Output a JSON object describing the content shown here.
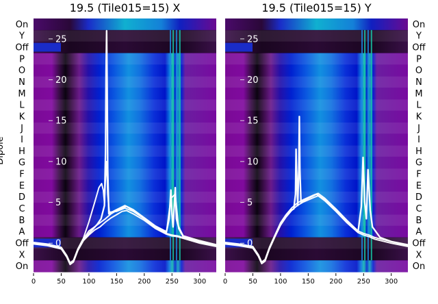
{
  "chart_data": [
    {
      "type": "heatmap",
      "title": "19.5 (Tile015=15) X",
      "ylabel": "Dipole",
      "dipole_labels": [
        "On",
        "Y",
        "Off",
        "P",
        "O",
        "N",
        "M",
        "L",
        "K",
        "J",
        "I",
        "H",
        "G",
        "F",
        "E",
        "D",
        "C",
        "B",
        "A",
        "Off",
        "X",
        "On"
      ],
      "x_ticks": [
        0,
        50,
        100,
        150,
        200,
        250,
        300
      ],
      "x_range": [
        0,
        330
      ],
      "overlay_y_ticks": [
        0,
        5,
        10,
        15,
        20,
        25
      ],
      "overlay_y_range": [
        -3.5,
        27.5
      ],
      "band_centers_x": [
        50,
        85,
        165,
        250,
        262
      ],
      "spike_x": 132,
      "series": [
        {
          "values": [
            [
              0,
              0.0
            ],
            [
              25,
              -0.2
            ],
            [
              50,
              -0.6
            ],
            [
              60,
              -1.6
            ],
            [
              66,
              -2.5
            ],
            [
              72,
              -2.2
            ],
            [
              80,
              -0.8
            ],
            [
              90,
              0.4
            ],
            [
              100,
              1.2
            ],
            [
              115,
              2.3
            ],
            [
              122,
              3.0
            ],
            [
              128,
              4.6
            ],
            [
              130,
              11.0
            ],
            [
              131,
              21.0
            ],
            [
              132,
              26.0
            ],
            [
              133,
              19.0
            ],
            [
              134,
              9.0
            ],
            [
              136,
              3.6
            ],
            [
              150,
              4.1
            ],
            [
              165,
              4.6
            ],
            [
              180,
              4.1
            ],
            [
              200,
              3.1
            ],
            [
              220,
              2.1
            ],
            [
              240,
              1.4
            ],
            [
              245,
              3.0
            ],
            [
              248,
              6.5
            ],
            [
              250,
              3.5
            ],
            [
              252,
              2.0
            ],
            [
              256,
              6.8
            ],
            [
              258,
              3.0
            ],
            [
              262,
              2.0
            ],
            [
              270,
              0.9
            ],
            [
              300,
              0.3
            ],
            [
              330,
              -0.2
            ]
          ]
        },
        {
          "values": [
            [
              0,
              0.1
            ],
            [
              25,
              -0.1
            ],
            [
              50,
              -0.5
            ],
            [
              60,
              -1.5
            ],
            [
              66,
              -2.4
            ],
            [
              72,
              -2.1
            ],
            [
              80,
              -0.7
            ],
            [
              90,
              0.6
            ],
            [
              100,
              2.6
            ],
            [
              110,
              4.9
            ],
            [
              118,
              6.8
            ],
            [
              123,
              7.3
            ],
            [
              126,
              6.5
            ],
            [
              128,
              5.0
            ],
            [
              130,
              8.0
            ],
            [
              132,
              10.0
            ],
            [
              134,
              6.0
            ],
            [
              137,
              3.8
            ],
            [
              150,
              3.9
            ],
            [
              165,
              4.3
            ],
            [
              180,
              3.9
            ],
            [
              200,
              3.0
            ],
            [
              220,
              2.0
            ],
            [
              240,
              1.3
            ],
            [
              248,
              5.5
            ],
            [
              256,
              6.0
            ],
            [
              262,
              1.8
            ],
            [
              270,
              0.8
            ],
            [
              300,
              0.2
            ],
            [
              330,
              -0.3
            ]
          ]
        },
        {
          "values": [
            [
              0,
              -0.1
            ],
            [
              25,
              -0.3
            ],
            [
              50,
              -0.7
            ],
            [
              60,
              -1.7
            ],
            [
              66,
              -2.6
            ],
            [
              72,
              -2.3
            ],
            [
              80,
              -0.9
            ],
            [
              90,
              0.3
            ],
            [
              100,
              1.0
            ],
            [
              110,
              1.6
            ],
            [
              120,
              2.0
            ],
            [
              130,
              2.6
            ],
            [
              140,
              3.1
            ],
            [
              150,
              3.5
            ],
            [
              160,
              3.9
            ],
            [
              168,
              4.0
            ],
            [
              180,
              3.6
            ],
            [
              200,
              2.8
            ],
            [
              220,
              1.8
            ],
            [
              240,
              1.1
            ],
            [
              250,
              0.9
            ],
            [
              260,
              0.8
            ],
            [
              270,
              0.6
            ],
            [
              300,
              0.0
            ],
            [
              330,
              -0.4
            ]
          ]
        },
        {
          "values": [
            [
              0,
              0.0
            ],
            [
              25,
              -0.2
            ],
            [
              50,
              -0.6
            ],
            [
              60,
              -1.6
            ],
            [
              66,
              -2.5
            ],
            [
              72,
              -2.2
            ],
            [
              80,
              -0.8
            ],
            [
              90,
              0.5
            ],
            [
              100,
              1.5
            ],
            [
              110,
              2.0
            ],
            [
              120,
              2.5
            ],
            [
              130,
              3.0
            ],
            [
              140,
              3.6
            ],
            [
              150,
              4.0
            ],
            [
              160,
              4.3
            ],
            [
              168,
              4.5
            ],
            [
              180,
              4.0
            ],
            [
              200,
              3.0
            ],
            [
              220,
              2.0
            ],
            [
              240,
              1.2
            ],
            [
              250,
              1.0
            ],
            [
              260,
              0.9
            ],
            [
              270,
              0.7
            ],
            [
              300,
              0.1
            ],
            [
              330,
              -0.3
            ]
          ]
        }
      ]
    },
    {
      "type": "heatmap",
      "title": "19.5 (Tile015=15) Y",
      "ylabel": "",
      "dipole_labels": [
        "On",
        "Y",
        "Off",
        "P",
        "O",
        "N",
        "M",
        "L",
        "K",
        "J",
        "I",
        "H",
        "G",
        "F",
        "E",
        "D",
        "C",
        "B",
        "A",
        "Off",
        "X",
        "On"
      ],
      "x_ticks": [
        0,
        50,
        100,
        150,
        200,
        250,
        300
      ],
      "x_range": [
        0,
        330
      ],
      "overlay_y_ticks": [
        0,
        5,
        10,
        15,
        20,
        25
      ],
      "overlay_y_range": [
        -3.5,
        27.5
      ],
      "band_centers_x": [
        50,
        85,
        165,
        250,
        262
      ],
      "spike_x": 134,
      "series": [
        {
          "values": [
            [
              0,
              0.0
            ],
            [
              25,
              -0.2
            ],
            [
              50,
              -0.5
            ],
            [
              60,
              -1.5
            ],
            [
              66,
              -2.4
            ],
            [
              72,
              -2.1
            ],
            [
              80,
              -0.6
            ],
            [
              90,
              0.9
            ],
            [
              100,
              2.3
            ],
            [
              110,
              3.3
            ],
            [
              118,
              4.0
            ],
            [
              124,
              4.2
            ],
            [
              127,
              6.0
            ],
            [
              128,
              11.5
            ],
            [
              129,
              9.0
            ],
            [
              131,
              4.6
            ],
            [
              133,
              9.0
            ],
            [
              134,
              15.5
            ],
            [
              135,
              9.0
            ],
            [
              137,
              5.0
            ],
            [
              150,
              5.5
            ],
            [
              165,
              6.0
            ],
            [
              180,
              5.3
            ],
            [
              200,
              4.0
            ],
            [
              220,
              2.6
            ],
            [
              240,
              1.4
            ],
            [
              246,
              4.5
            ],
            [
              249,
              10.5
            ],
            [
              252,
              5.0
            ],
            [
              255,
              3.0
            ],
            [
              258,
              9.0
            ],
            [
              262,
              4.0
            ],
            [
              266,
              2.0
            ],
            [
              280,
              0.7
            ],
            [
              300,
              0.2
            ],
            [
              330,
              -0.2
            ]
          ]
        },
        {
          "values": [
            [
              0,
              0.1
            ],
            [
              25,
              -0.1
            ],
            [
              50,
              -0.4
            ],
            [
              60,
              -1.4
            ],
            [
              66,
              -2.3
            ],
            [
              72,
              -2.0
            ],
            [
              80,
              -0.5
            ],
            [
              90,
              1.0
            ],
            [
              100,
              2.5
            ],
            [
              110,
              3.5
            ],
            [
              120,
              4.3
            ],
            [
              130,
              4.9
            ],
            [
              140,
              5.3
            ],
            [
              150,
              5.6
            ],
            [
              160,
              5.9
            ],
            [
              168,
              6.1
            ],
            [
              180,
              5.5
            ],
            [
              200,
              4.2
            ],
            [
              220,
              2.8
            ],
            [
              240,
              1.5
            ],
            [
              250,
              1.2
            ],
            [
              260,
              1.0
            ],
            [
              270,
              0.7
            ],
            [
              300,
              0.2
            ],
            [
              330,
              -0.3
            ]
          ]
        },
        {
          "values": [
            [
              0,
              -0.1
            ],
            [
              25,
              -0.3
            ],
            [
              50,
              -0.6
            ],
            [
              60,
              -1.6
            ],
            [
              66,
              -2.5
            ],
            [
              72,
              -2.2
            ],
            [
              80,
              -0.7
            ],
            [
              90,
              0.8
            ],
            [
              100,
              2.2
            ],
            [
              110,
              3.2
            ],
            [
              120,
              4.0
            ],
            [
              130,
              4.6
            ],
            [
              140,
              5.0
            ],
            [
              150,
              5.3
            ],
            [
              160,
              5.6
            ],
            [
              168,
              5.8
            ],
            [
              180,
              5.2
            ],
            [
              200,
              3.9
            ],
            [
              220,
              2.5
            ],
            [
              240,
              1.3
            ],
            [
              250,
              1.0
            ],
            [
              260,
              0.8
            ],
            [
              270,
              0.5
            ],
            [
              300,
              0.0
            ],
            [
              330,
              -0.4
            ]
          ]
        }
      ]
    }
  ]
}
